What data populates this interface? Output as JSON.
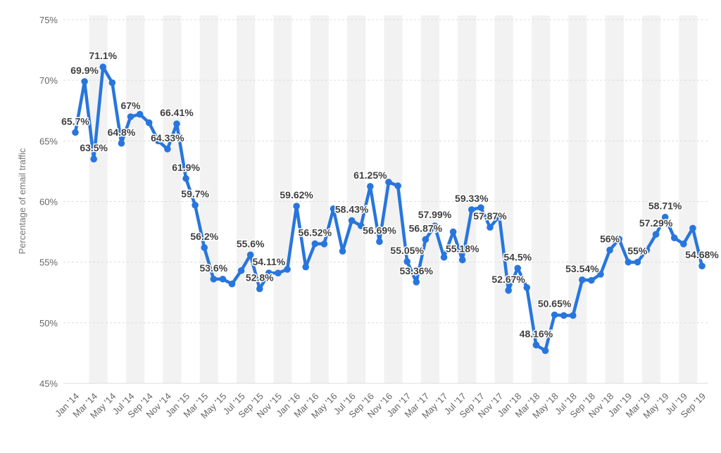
{
  "chart_data": {
    "type": "line",
    "ylabel": "Percentage of email traffic",
    "ylim": [
      45,
      75
    ],
    "y_ticks": [
      45,
      50,
      55,
      60,
      65,
      70,
      75
    ],
    "y_tick_labels": [
      "45%",
      "50%",
      "55%",
      "60%",
      "65%",
      "70%",
      "75%"
    ],
    "x_tick_labels": [
      "Jan '14",
      "Mar '14",
      "May '14",
      "Jul '14",
      "Sep '14",
      "Nov '14",
      "Jan '15",
      "Mar '15",
      "May '15",
      "Jul '15",
      "Sep '15",
      "Nov '15",
      "Jan '16",
      "Mar '16",
      "May '16",
      "Jul '16",
      "Sep '16",
      "Nov '16",
      "Jan '17",
      "Mar '17",
      "May '17",
      "Jul '17",
      "Sep '17",
      "Nov '17",
      "Jan '18",
      "Mar '18",
      "May '18",
      "Jul '18",
      "Sep '18",
      "Nov '18",
      "Jan '19",
      "Mar '19",
      "May '19",
      "Jul '19",
      "Sep '19"
    ],
    "categories": [
      "Jan '14",
      "Feb '14",
      "Mar '14",
      "Apr '14",
      "May '14",
      "Jun '14",
      "Jul '14",
      "Aug '14",
      "Sep '14",
      "Oct '14",
      "Nov '14",
      "Dec '14",
      "Jan '15",
      "Feb '15",
      "Mar '15",
      "Apr '15",
      "May '15",
      "Jun '15",
      "Jul '15",
      "Aug '15",
      "Sep '15",
      "Oct '15",
      "Nov '15",
      "Dec '15",
      "Jan '16",
      "Feb '16",
      "Mar '16",
      "Apr '16",
      "May '16",
      "Jun '16",
      "Jul '16",
      "Aug '16",
      "Sep '16",
      "Oct '16",
      "Nov '16",
      "Dec '16",
      "Jan '17",
      "Feb '17",
      "Mar '17",
      "Apr '17",
      "May '17",
      "Jun '17",
      "Jul '17",
      "Aug '17",
      "Sep '17",
      "Oct '17",
      "Nov '17",
      "Dec '17",
      "Jan '18",
      "Feb '18",
      "Mar '18",
      "Apr '18",
      "May '18",
      "Jun '18",
      "Jul '18",
      "Aug '18",
      "Sep '18",
      "Oct '18",
      "Nov '18",
      "Dec '18",
      "Jan '19",
      "Feb '19",
      "Mar '19",
      "Apr '19",
      "May '19",
      "Jun '19",
      "Jul '19",
      "Aug '19",
      "Sep '19"
    ],
    "series": [
      {
        "color": "#2876dd",
        "values": [
          65.7,
          69.9,
          63.5,
          71.1,
          69.8,
          64.8,
          67,
          67.2,
          66.5,
          65,
          64.33,
          66.41,
          61.9,
          59.7,
          56.2,
          53.6,
          53.6,
          53.2,
          54.3,
          55.6,
          52.8,
          54.11,
          54.1,
          54.4,
          59.62,
          54.6,
          56.52,
          56.5,
          59.4,
          55.9,
          58.43,
          58,
          61.25,
          56.69,
          61.6,
          61.3,
          55.05,
          53.36,
          56.87,
          57.99,
          55.4,
          57.5,
          55.18,
          59.33,
          59.5,
          57.87,
          58.8,
          52.67,
          54.5,
          52.9,
          48.16,
          47.7,
          50.65,
          50.6,
          50.6,
          53.54,
          53.5,
          54,
          56,
          56.9,
          55,
          55,
          56,
          57.29,
          58.71,
          57,
          56.5,
          57.8,
          54.68
        ]
      }
    ],
    "labels": [
      {
        "i": 0,
        "text": "65.7%"
      },
      {
        "i": 1,
        "text": "69.9%"
      },
      {
        "i": 2,
        "text": "63.5%"
      },
      {
        "i": 3,
        "text": "71.1%"
      },
      {
        "i": 5,
        "text": "64.8%"
      },
      {
        "i": 6,
        "text": "67%"
      },
      {
        "i": 10,
        "text": "64.33%"
      },
      {
        "i": 11,
        "text": "66.41%"
      },
      {
        "i": 12,
        "text": "61.9%"
      },
      {
        "i": 13,
        "text": "59.7%"
      },
      {
        "i": 14,
        "text": "56.2%"
      },
      {
        "i": 15,
        "text": "53.6%"
      },
      {
        "i": 19,
        "text": "55.6%"
      },
      {
        "i": 20,
        "text": "52.8%"
      },
      {
        "i": 21,
        "text": "54.11%"
      },
      {
        "i": 24,
        "text": "59.62%"
      },
      {
        "i": 26,
        "text": "56.52%"
      },
      {
        "i": 30,
        "text": "58.43%"
      },
      {
        "i": 32,
        "text": "61.25%"
      },
      {
        "i": 33,
        "text": "56.69%"
      },
      {
        "i": 36,
        "text": "55.05%"
      },
      {
        "i": 37,
        "text": "53.36%"
      },
      {
        "i": 38,
        "text": "56.87%"
      },
      {
        "i": 39,
        "text": "57.99%"
      },
      {
        "i": 42,
        "text": "55.18%"
      },
      {
        "i": 43,
        "text": "59.33%"
      },
      {
        "i": 45,
        "text": "57.87%"
      },
      {
        "i": 47,
        "text": "52.67%"
      },
      {
        "i": 48,
        "text": "54.5%"
      },
      {
        "i": 50,
        "text": "48.16%"
      },
      {
        "i": 52,
        "text": "50.65%"
      },
      {
        "i": 55,
        "text": "53.54%"
      },
      {
        "i": 58,
        "text": "56%"
      },
      {
        "i": 61,
        "text": "55%"
      },
      {
        "i": 63,
        "text": "57.29%"
      },
      {
        "i": 64,
        "text": "58.71%"
      },
      {
        "i": 68,
        "text": "54.68%"
      }
    ],
    "grid": true,
    "alternating_column_bands": true,
    "band_color": "#f2f2f2",
    "legend": "none"
  }
}
